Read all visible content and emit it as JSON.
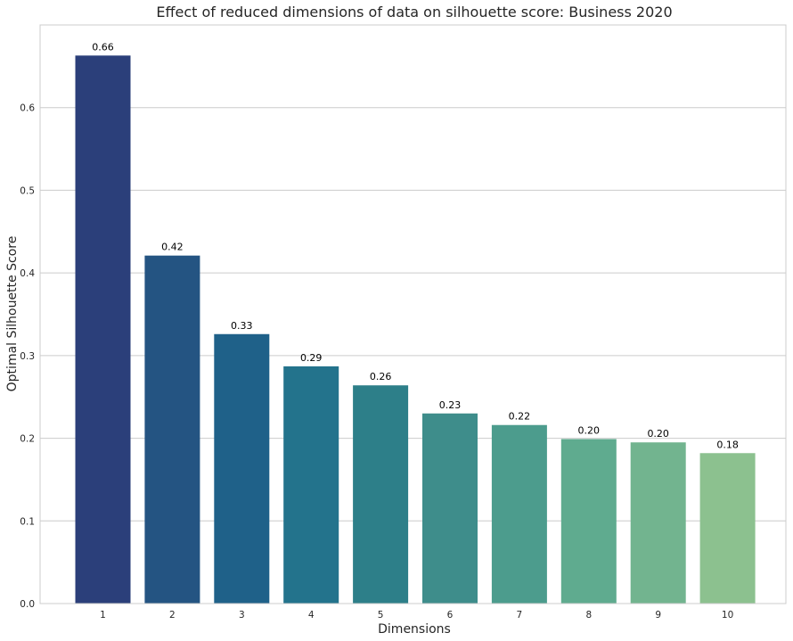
{
  "chart_data": {
    "type": "bar",
    "title": "Effect of reduced dimensions of data on silhouette score: Business 2020",
    "xlabel": "Dimensions",
    "ylabel": "Optimal Silhouette Score",
    "categories": [
      "1",
      "2",
      "3",
      "4",
      "5",
      "6",
      "7",
      "8",
      "9",
      "10"
    ],
    "values": [
      0.663,
      0.421,
      0.326,
      0.287,
      0.264,
      0.23,
      0.216,
      0.199,
      0.195,
      0.182
    ],
    "value_labels": [
      "0.66",
      "0.42",
      "0.33",
      "0.29",
      "0.26",
      "0.23",
      "0.22",
      "0.20",
      "0.20",
      "0.18"
    ],
    "ylim": [
      0,
      0.7
    ],
    "yticks": [
      0.0,
      0.1,
      0.2,
      0.3,
      0.4,
      0.5,
      0.6
    ],
    "ytick_labels": [
      "0.0",
      "0.1",
      "0.2",
      "0.3",
      "0.4",
      "0.5",
      "0.6"
    ],
    "grid": true,
    "colors": [
      "#2b3f7a",
      "#245482",
      "#1f6189",
      "#23738c",
      "#2d7f89",
      "#3e8d8b",
      "#4c9c8d",
      "#5fab8f",
      "#72b48f",
      "#8cc18f"
    ]
  }
}
